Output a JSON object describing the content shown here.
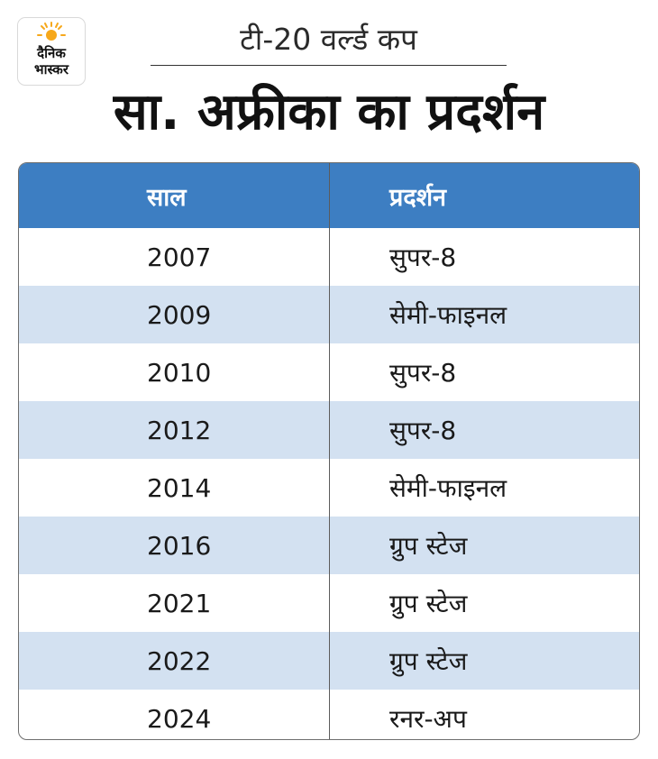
{
  "logo": {
    "text_line1": "दैनिक",
    "text_line2": "भास्कर",
    "sun_color": "#f6a81b"
  },
  "subtitle": "टी-20 वर्ल्ड कप",
  "title": "सा. अफ्रीका का प्रदर्शन",
  "colors": {
    "header_bg": "#3d7ec2",
    "alt_row_bg": "#d3e1f1"
  },
  "table": {
    "headers": [
      "साल",
      "प्रदर्शन"
    ],
    "rows": [
      [
        "2007",
        "सुपर-8"
      ],
      [
        "2009",
        "सेमी-फाइनल"
      ],
      [
        "2010",
        "सुपर-8"
      ],
      [
        "2012",
        "सुपर-8"
      ],
      [
        "2014",
        "सेमी-फाइनल"
      ],
      [
        "2016",
        "ग्रुप स्टेज"
      ],
      [
        "2021",
        "ग्रुप स्टेज"
      ],
      [
        "2022",
        "ग्रुप स्टेज"
      ],
      [
        "2024",
        "रनर-अप"
      ]
    ]
  }
}
